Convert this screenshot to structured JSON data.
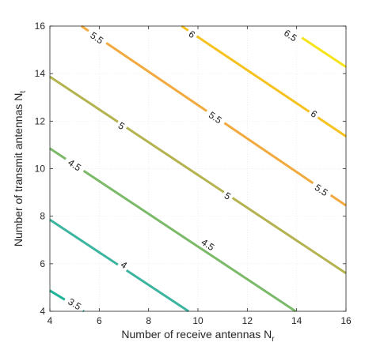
{
  "chart_data": {
    "type": "contour",
    "xlabel": {
      "text": "Number of receive antennas N",
      "sub": "r"
    },
    "ylabel": {
      "text": "Number of transmit antennas N",
      "sub": "t"
    },
    "xlim": [
      4,
      16
    ],
    "ylim": [
      4,
      16
    ],
    "x_ticks": [
      "4",
      "6",
      "8",
      "10",
      "12",
      "14",
      "16"
    ],
    "y_ticks": [
      "4",
      "6",
      "8",
      "10",
      "12",
      "14",
      "16"
    ],
    "grid": true,
    "box": true,
    "levels": [
      {
        "label": "3.5",
        "color": "#1fb39a",
        "points": [
          [
            4,
            4.87
          ],
          [
            5.38,
            4
          ]
        ]
      },
      {
        "label": "4",
        "color": "#3bb5a0",
        "points": [
          [
            4,
            7.85
          ],
          [
            9.62,
            4
          ]
        ]
      },
      {
        "label": "4.5",
        "color": "#7cba6a",
        "points": [
          [
            4,
            10.85
          ],
          [
            13.96,
            4
          ]
        ]
      },
      {
        "label": "5",
        "color": "#b4b34f",
        "points": [
          [
            4,
            13.87
          ],
          [
            16,
            5.6
          ]
        ]
      },
      {
        "label": "5.5",
        "color": "#f2a93e",
        "points": [
          [
            5.28,
            16
          ],
          [
            16,
            8.45
          ]
        ]
      },
      {
        "label": "6",
        "color": "#f5c21f",
        "points": [
          [
            9.34,
            16
          ],
          [
            16,
            11.36
          ]
        ]
      },
      {
        "label": "6.5",
        "color": "#f5e41a",
        "points": [
          [
            13.5,
            16
          ],
          [
            16,
            14.28
          ]
        ]
      }
    ],
    "contour_labels": [
      {
        "text": "3.5",
        "x": 5.0,
        "y": 4.3
      },
      {
        "text": "4",
        "x": 7.0,
        "y": 5.95
      },
      {
        "text": "4.5",
        "x": 5.0,
        "y": 10.15
      },
      {
        "text": "4.5",
        "x": 10.4,
        "y": 6.8
      },
      {
        "text": "5",
        "x": 6.9,
        "y": 11.8
      },
      {
        "text": "5",
        "x": 11.2,
        "y": 8.85
      },
      {
        "text": "5.5",
        "x": 5.9,
        "y": 15.5
      },
      {
        "text": "5.5",
        "x": 10.7,
        "y": 12.15
      },
      {
        "text": "5.5",
        "x": 15.0,
        "y": 9.1
      },
      {
        "text": "6",
        "x": 9.75,
        "y": 15.65
      },
      {
        "text": "6",
        "x": 14.7,
        "y": 12.3
      },
      {
        "text": "6.5",
        "x": 13.75,
        "y": 15.6
      }
    ]
  }
}
